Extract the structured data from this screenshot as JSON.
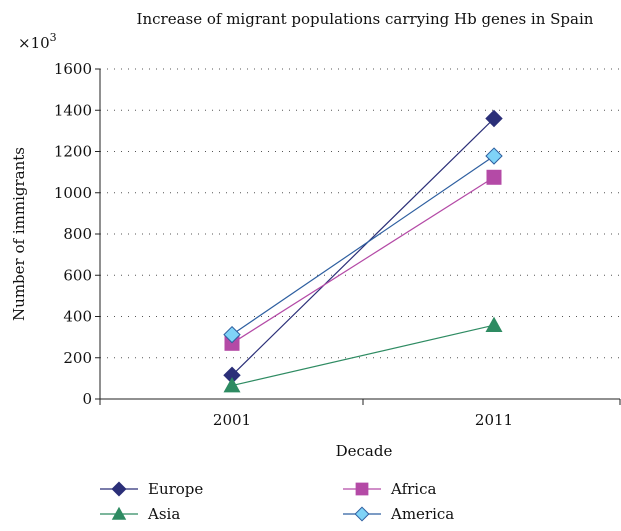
{
  "chart_data": {
    "type": "line",
    "title": "Increase of migrant populations carrying Hb genes in Spain",
    "multiplier_label": "×10",
    "multiplier_exp": "3",
    "xlabel": "Decade",
    "ylabel": "Number of immigrants",
    "categories": [
      "2001",
      "2011"
    ],
    "ylim": [
      0,
      1600
    ],
    "yticks": [
      "0",
      "200",
      "400",
      "600",
      "800",
      "1000",
      "1200",
      "1400",
      "1600"
    ],
    "grid": "horizontal dotted",
    "legend_position": "bottom",
    "series": [
      {
        "name": "Europe",
        "values": [
          115,
          1360
        ],
        "color": "#2b2f78",
        "marker": "diamond"
      },
      {
        "name": "Africa",
        "values": [
          270,
          1075
        ],
        "color": "#b44aa6",
        "marker": "square"
      },
      {
        "name": "Asia",
        "values": [
          65,
          358
        ],
        "color": "#2e8b62",
        "marker": "triangle"
      },
      {
        "name": "America",
        "values": [
          312,
          1178
        ],
        "color": "#2e5fa0",
        "marker": "diamond-light",
        "fill": "#7fd3f7"
      }
    ]
  }
}
